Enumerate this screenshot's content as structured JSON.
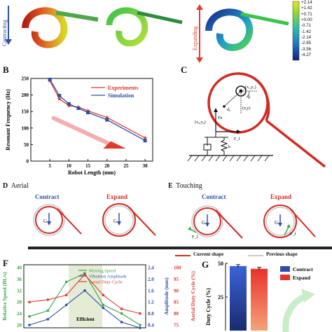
{
  "panel_a": {
    "contracting_label": "Contracting",
    "expanding_label": "Expanding",
    "colorbar_ticks": [
      "+2.14",
      "+1.42",
      "+0.71",
      "+0.00",
      "-0.71",
      "-1.42",
      "-2.14",
      "-2.85",
      "-3.56",
      "-4.27"
    ]
  },
  "panel_b": {
    "label": "B",
    "chart_data": {
      "type": "line",
      "xlabel": "Robot Length (mm)",
      "ylabel": "Resonant Frequency (Hz)",
      "xlim": [
        0,
        32
      ],
      "ylim": [
        0,
        250
      ],
      "xticks": [
        "5",
        "10",
        "15",
        "20",
        "25",
        "30"
      ],
      "yticks": [
        "0",
        "50",
        "100",
        "150",
        "200",
        "250"
      ],
      "x": [
        5,
        7.5,
        10,
        12.5,
        15,
        20,
        30
      ],
      "series": [
        {
          "name": "Experiments",
          "values": [
            243,
            188,
            168,
            163,
            152,
            132,
            70
          ],
          "color": "#e03a2f",
          "marker": "star"
        },
        {
          "name": "Simulation",
          "values": [
            247,
            198,
            173,
            160,
            147,
            125,
            62
          ],
          "color": "#2e4fa8",
          "marker": "square"
        }
      ],
      "legend": "top-right"
    }
  },
  "panel_c": {
    "label": "C",
    "labels": {
      "theta": "θ",
      "d0": "d₀",
      "xy": "(x,y)",
      "xgyg": "(x₉,y₉)",
      "x1y1": "(x₁,y₁)",
      "fn": "Fn",
      "ff": "F_f",
      "k": "k"
    }
  },
  "panel_d": {
    "label": "D",
    "title": "Aerial",
    "contract": "Contract",
    "expand": "Expand",
    "g": "G"
  },
  "panel_e": {
    "label": "E",
    "title": "Touching",
    "contract": "Contract",
    "expand": "Expand",
    "g": "G",
    "ff": "F_f"
  },
  "legend_shapes": {
    "current": "Current shape",
    "previous": "Previous shape"
  },
  "panel_f": {
    "label": "F",
    "region_label": "Efficient",
    "chart_data": {
      "type": "line",
      "ylabel_left": "Relative Speed (BL/s)",
      "ylabel_mid": "Amplitude (mm)",
      "ylabel_right": "Aerial Duty Cycle (%)",
      "left_ticks": [
        "20",
        "24",
        "28",
        "32",
        "36",
        "40"
      ],
      "mid_ticks": [
        "0.4",
        "0.8",
        "1.2",
        "1.6",
        "2.0",
        "2.4"
      ],
      "right_ticks": [
        "75",
        "80",
        "85",
        "90",
        "95",
        "100"
      ],
      "series": [
        {
          "name": "Moving Speed",
          "values": [
            23,
            25,
            35,
            38,
            27,
            24,
            20
          ],
          "color": "#3aa84a"
        },
        {
          "name": "Vibration Amplitude",
          "values": [
            0.4,
            0.6,
            1.1,
            1.6,
            1.0,
            0.5,
            0.3
          ],
          "color": "#2e4fa8"
        },
        {
          "name": "Aerial Duty Cycle",
          "values": [
            85,
            86,
            88,
            97,
            88,
            82,
            80
          ],
          "color": "#e03a2f"
        }
      ]
    }
  },
  "panel_g": {
    "label": "G",
    "chart_data": {
      "type": "bar",
      "ylabel": "Duty Cycle (%)",
      "yticks": [
        "25",
        "50"
      ],
      "ylim": [
        0,
        50
      ],
      "categories": [
        "Contract",
        "Expand"
      ],
      "values": [
        48,
        46
      ],
      "legend": "top-right"
    }
  }
}
